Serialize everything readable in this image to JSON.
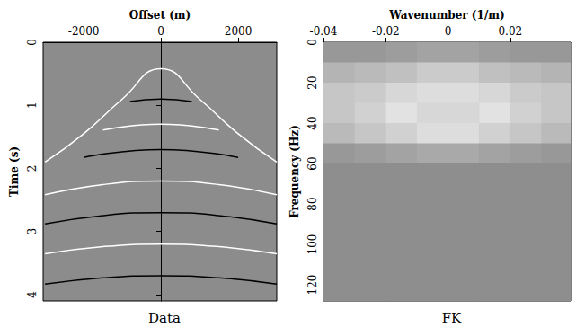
{
  "chart_data": [
    {
      "type": "line",
      "title": "Data",
      "x_label": "Offset (m)",
      "y_label": "Time (s)",
      "xlim": [
        -3050,
        3000
      ],
      "ylim": [
        0,
        4.1
      ],
      "xticks": [
        -2000,
        0,
        2000
      ],
      "yticks": [
        0,
        1,
        2,
        3,
        4
      ],
      "grid": false,
      "series": [
        {
          "color": "#ffffff",
          "x": [
            -3000,
            -2000,
            -1000,
            0,
            1000,
            2000,
            3000
          ],
          "values": [
            1.9,
            1.45,
            0.9,
            0.42,
            0.9,
            1.45,
            1.9
          ]
        },
        {
          "color": "#000000",
          "x": [
            -800,
            0,
            800
          ],
          "values": [
            0.939,
            0.9,
            0.939
          ]
        },
        {
          "color": "#ffffff",
          "x": [
            -1500,
            0,
            1500
          ],
          "values": [
            1.393,
            1.3,
            1.393
          ]
        },
        {
          "color": "#000000",
          "x": [
            -2000,
            0,
            2000
          ],
          "values": [
            1.826,
            1.7,
            1.826
          ]
        },
        {
          "color": "#ffffff",
          "x": [
            -3000,
            -1500,
            0,
            1500,
            3000
          ],
          "values": [
            2.417,
            2.256,
            2.2,
            2.256,
            2.417
          ]
        },
        {
          "color": "#000000",
          "x": [
            -3000,
            -1500,
            0,
            1500,
            3000
          ],
          "values": [
            2.879,
            2.746,
            2.7,
            2.746,
            2.879
          ]
        },
        {
          "color": "#ffffff",
          "x": [
            -3000,
            -1500,
            0,
            1500,
            3000
          ],
          "values": [
            3.353,
            3.239,
            3.2,
            3.239,
            3.353
          ]
        },
        {
          "color": "#000000",
          "x": [
            -3000,
            -1500,
            0,
            1500,
            3000
          ],
          "values": [
            3.833,
            3.734,
            3.7,
            3.734,
            3.833
          ]
        }
      ]
    },
    {
      "type": "heatmap",
      "title": "FK",
      "x_label": "Wavenumber (1/m)",
      "y_label": "Frequency (Hz)",
      "xlim": [
        -0.04,
        0.0394
      ],
      "ylim": [
        0,
        128
      ],
      "xticks": [
        -0.04,
        -0.02,
        0,
        0.02
      ],
      "yticks": [
        0,
        20,
        40,
        60,
        80,
        100,
        120
      ],
      "grid": false,
      "x": [
        -0.035,
        -0.025,
        -0.015,
        -0.005,
        0.005,
        0.015,
        0.025,
        0.035
      ],
      "y": [
        5,
        15,
        25,
        35,
        45,
        55,
        65,
        75,
        85,
        95,
        105,
        115,
        125
      ],
      "cells": [
        [
          0.1,
          0.1,
          0.15,
          0.2,
          0.2,
          0.15,
          0.1,
          0.1
        ],
        [
          0.35,
          0.4,
          0.45,
          0.55,
          0.55,
          0.45,
          0.4,
          0.35
        ],
        [
          0.5,
          0.55,
          0.65,
          0.7,
          0.7,
          0.65,
          0.55,
          0.5
        ],
        [
          0.5,
          0.6,
          0.75,
          0.65,
          0.65,
          0.75,
          0.6,
          0.5
        ],
        [
          0.4,
          0.5,
          0.6,
          0.7,
          0.7,
          0.6,
          0.5,
          0.4
        ],
        [
          0.1,
          0.15,
          0.2,
          0.25,
          0.25,
          0.2,
          0.15,
          0.1
        ],
        [
          0.02,
          0.02,
          0.02,
          0.02,
          0.02,
          0.02,
          0.02,
          0.02
        ],
        [
          0.02,
          0.02,
          0.02,
          0.02,
          0.02,
          0.02,
          0.02,
          0.02
        ],
        [
          0.02,
          0.02,
          0.02,
          0.02,
          0.02,
          0.02,
          0.02,
          0.02
        ],
        [
          0.02,
          0.02,
          0.02,
          0.02,
          0.02,
          0.02,
          0.02,
          0.02
        ],
        [
          0.02,
          0.02,
          0.02,
          0.02,
          0.02,
          0.02,
          0.02,
          0.02
        ],
        [
          0.02,
          0.02,
          0.02,
          0.02,
          0.02,
          0.02,
          0.02,
          0.02
        ],
        [
          0.02,
          0.02,
          0.02,
          0.02,
          0.02,
          0.02,
          0.02,
          0.02
        ]
      ],
      "color_range": [
        0,
        1
      ]
    }
  ]
}
